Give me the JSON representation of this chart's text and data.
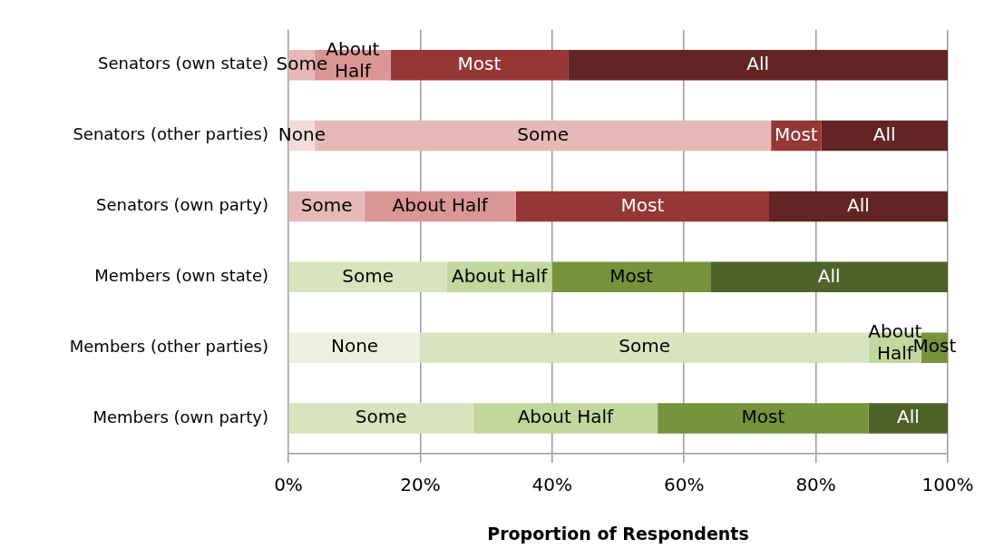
{
  "chart_data": {
    "type": "bar",
    "orientation": "horizontal",
    "stacked": true,
    "xlabel": "Proportion of Respondents",
    "categories": [
      "Senators (own state)",
      "Senators (other parties)",
      "Senators (own party)",
      "Members (own state)",
      "Members (other parties)",
      "Members (own party)"
    ],
    "xlim": [
      0,
      100
    ],
    "xticks": [
      {
        "value": 0,
        "label": "0%"
      },
      {
        "value": 20,
        "label": "20%"
      },
      {
        "value": 40,
        "label": "40%"
      },
      {
        "value": 60,
        "label": "60%"
      },
      {
        "value": 80,
        "label": "80%"
      },
      {
        "value": 100,
        "label": "100%"
      }
    ],
    "grid": "x",
    "series": [
      {
        "values": [
          null,
          4,
          null,
          null,
          20,
          null
        ],
        "colors": [
          "#f2dcdb",
          "#f2dcdb",
          "#f2dcdb",
          "#ebf1de",
          "#ebf1de",
          "#ebf1de"
        ],
        "value_labels": [
          null,
          "None",
          null,
          null,
          "None",
          null
        ]
      },
      {
        "values": [
          4,
          69.2,
          11.5,
          24,
          68,
          28
        ],
        "colors": [
          "#e6b9b8",
          "#e6b9b8",
          "#e6b9b8",
          "#d7e4bd",
          "#d7e4bd",
          "#d7e4bd"
        ],
        "value_labels": [
          "Some",
          "Some",
          "Some",
          "Some",
          "Some",
          "Some"
        ]
      },
      {
        "values": [
          11.5,
          null,
          23,
          16,
          8,
          28
        ],
        "colors": [
          "#d99694",
          "#d99694",
          "#d99694",
          "#c3d69b",
          "#c3d69b",
          "#c3d69b"
        ],
        "value_labels": [
          "About Half",
          null,
          "About Half",
          "About Half",
          "About Half",
          "About Half"
        ]
      },
      {
        "values": [
          26.9,
          7.6,
          38.4,
          24,
          4,
          32
        ],
        "colors": [
          "#953735",
          "#953735",
          "#953735",
          "#77933c",
          "#77933c",
          "#77933c"
        ],
        "value_labels": [
          "Most",
          "Most",
          "Most",
          "Most",
          "Most",
          "Most"
        ]
      },
      {
        "values": [
          57.6,
          19.2,
          27.1,
          36,
          null,
          12
        ],
        "colors": [
          "#632523",
          "#632523",
          "#632523",
          "#4f6228",
          "#4f6228",
          "#4f6228"
        ],
        "value_labels": [
          "All",
          "All",
          "All",
          "All",
          null,
          "All"
        ]
      }
    ]
  }
}
